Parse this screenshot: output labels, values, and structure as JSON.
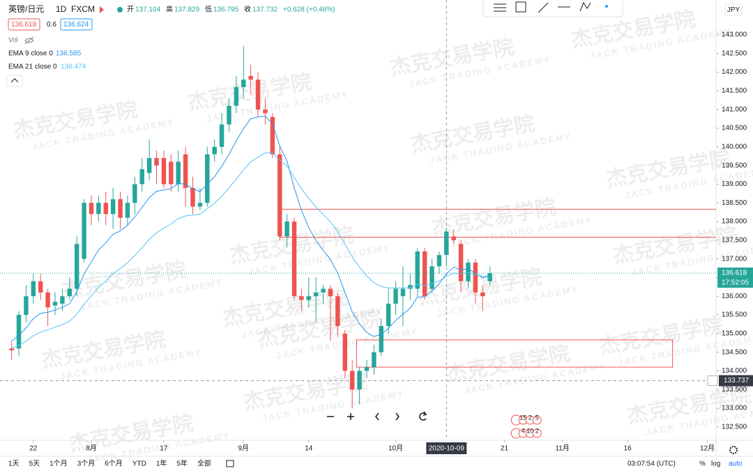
{
  "header": {
    "symbol": "英镑/日元",
    "interval": "1D",
    "source": "FXCM",
    "ohlc_labels": [
      "开",
      "高",
      "低",
      "收"
    ],
    "change": "+0.628 (+0.46%)",
    "spread": "0.6",
    "ask": 136.624
  },
  "indicators": {
    "vol": "Vol"
  },
  "watermark": {
    "cn": "杰克交易学院",
    "en": "JACK TRADING ACADEMY"
  },
  "chart_data": {
    "type": "candlestick",
    "currency": "JPY",
    "up_color": "#26a69a",
    "down_color": "#ef5350",
    "open": [
      134.6,
      134.6,
      135.5,
      136.0,
      136.4,
      136.1,
      135.75,
      135.8,
      136.0,
      136.2,
      137.0,
      138.5,
      138.2,
      138.5,
      138.2,
      138.6,
      138.1,
      138.5,
      139.0,
      139.3,
      139.7,
      139.7,
      139.6,
      139.0,
      139.8,
      138.9,
      138.4,
      138.5,
      139.8,
      140.0,
      140.6,
      141.1,
      141.6,
      141.9,
      141.8,
      141.0,
      140.8,
      139.8,
      137.6,
      138.0,
      136.0,
      135.9,
      136.0,
      136.1,
      136.2,
      136.0,
      135.0,
      134.0,
      133.5,
      134.0,
      134.1,
      134.5,
      135.2,
      135.8,
      136.0,
      136.2,
      136.2,
      137.2,
      136.2,
      136.8,
      137.104,
      137.6,
      137.4,
      136.4,
      136.9,
      136.1,
      136.4
    ],
    "high": [
      134.8,
      135.6,
      136.3,
      136.6,
      136.6,
      136.2,
      136.1,
      136.2,
      136.5,
      137.6,
      138.6,
      138.7,
      138.7,
      138.8,
      138.9,
      138.8,
      138.7,
      139.2,
      139.7,
      140.2,
      139.9,
      139.9,
      139.8,
      139.9,
      140.0,
      139.2,
      138.9,
      140.0,
      140.2,
      140.9,
      141.3,
      141.9,
      142.7,
      142.2,
      142.0,
      141.3,
      140.9,
      140.0,
      138.2,
      138.1,
      136.2,
      136.5,
      136.5,
      136.3,
      136.3,
      136.1,
      135.1,
      134.3,
      134.1,
      134.3,
      134.7,
      135.4,
      136.2,
      136.4,
      136.8,
      136.6,
      137.3,
      137.3,
      137.0,
      137.2,
      137.829,
      137.8,
      137.5,
      137.0,
      137.0,
      136.3,
      136.8
    ],
    "low": [
      134.3,
      134.4,
      135.3,
      135.8,
      135.9,
      135.2,
      135.5,
      135.6,
      135.9,
      136.0,
      136.9,
      137.9,
      138.0,
      137.9,
      137.8,
      137.8,
      137.9,
      138.2,
      138.8,
      139.1,
      139.0,
      138.9,
      138.8,
      138.8,
      138.4,
      138.2,
      138.3,
      138.4,
      139.6,
      139.8,
      140.4,
      140.9,
      141.3,
      141.4,
      140.8,
      140.6,
      139.7,
      137.5,
      137.3,
      135.9,
      135.6,
      135.7,
      135.3,
      135.8,
      134.8,
      134.9,
      133.8,
      133.0,
      133.1,
      133.8,
      133.9,
      134.4,
      135.0,
      135.5,
      135.2,
      135.9,
      136.0,
      135.9,
      136.1,
      136.6,
      136.795,
      137.4,
      136.1,
      136.2,
      135.8,
      135.6,
      136.3
    ],
    "close": [
      134.55,
      135.5,
      136.0,
      136.4,
      136.1,
      135.7,
      135.85,
      136.0,
      136.2,
      137.4,
      138.5,
      138.2,
      138.5,
      138.2,
      138.6,
      138.1,
      138.5,
      139.0,
      139.4,
      139.7,
      139.5,
      139.0,
      139.0,
      139.6,
      138.9,
      138.4,
      138.5,
      139.8,
      140.0,
      140.6,
      141.1,
      141.6,
      141.8,
      141.8,
      141.0,
      140.9,
      139.8,
      137.6,
      138.0,
      136.0,
      135.9,
      136.0,
      136.1,
      136.2,
      136.0,
      135.2,
      134.0,
      133.5,
      134.0,
      134.1,
      134.5,
      135.2,
      135.8,
      136.2,
      136.2,
      136.3,
      137.2,
      136.0,
      136.8,
      137.1,
      137.732,
      137.5,
      136.4,
      136.9,
      136.1,
      136.0,
      136.618
    ],
    "series": [
      {
        "name": "EMA 9 close 0",
        "color": "#2196f3",
        "values": [
          134.8,
          134.94,
          135.15,
          135.4,
          135.54,
          135.57,
          135.63,
          135.7,
          135.8,
          136.12,
          136.6,
          136.92,
          137.24,
          137.43,
          137.66,
          137.75,
          137.9,
          138.12,
          138.38,
          138.64,
          138.81,
          138.85,
          138.88,
          139.02,
          139.0,
          138.88,
          138.8,
          139.0,
          139.2,
          139.48,
          139.8,
          140.16,
          140.49,
          140.75,
          140.8,
          140.82,
          140.62,
          140.02,
          139.62,
          138.9,
          138.3,
          137.84,
          137.49,
          137.23,
          136.98,
          136.62,
          136.1,
          135.58,
          135.26,
          135.03,
          134.92,
          134.98,
          135.14,
          135.35,
          135.52,
          135.68,
          135.98,
          135.98,
          136.14,
          136.33,
          136.6,
          136.78,
          136.7,
          136.74,
          136.61,
          136.49,
          136.585
        ]
      },
      {
        "name": "EMA 21 close 0",
        "color": "#4fc3f7",
        "values": [
          134.6,
          134.68,
          134.8,
          134.94,
          135.04,
          135.1,
          135.17,
          135.24,
          135.33,
          135.52,
          135.79,
          136.01,
          136.23,
          136.41,
          136.61,
          136.74,
          136.9,
          137.09,
          137.3,
          137.52,
          137.7,
          137.82,
          137.93,
          138.08,
          138.15,
          138.17,
          138.2,
          138.34,
          138.49,
          138.68,
          138.9,
          139.14,
          139.38,
          139.6,
          139.73,
          139.84,
          139.84,
          139.64,
          139.49,
          139.18,
          138.88,
          138.62,
          138.39,
          138.19,
          137.99,
          137.74,
          137.4,
          137.05,
          136.78,
          136.54,
          136.36,
          136.26,
          136.22,
          136.22,
          136.22,
          136.23,
          136.32,
          136.29,
          136.34,
          136.41,
          136.53,
          136.62,
          136.6,
          136.63,
          136.58,
          136.53,
          136.474
        ]
      }
    ],
    "xlim": [
      -1.6,
      97.2
    ],
    "xticks": [
      {
        "value": 3,
        "label": "22"
      },
      {
        "value": 11,
        "label": "8月"
      },
      {
        "value": 21,
        "label": "17"
      },
      {
        "value": 32,
        "label": "9月"
      },
      {
        "value": 41,
        "label": "14"
      },
      {
        "value": 53,
        "label": "10月"
      },
      {
        "value": 68,
        "label": "21"
      },
      {
        "value": 76,
        "label": "11月"
      },
      {
        "value": 85,
        "label": "16"
      },
      {
        "value": 96,
        "label": "12月"
      }
    ],
    "ylim": [
      132.142,
      143.933
    ],
    "yticks": [
      {
        "value": 132.5,
        "label": "132.500"
      },
      {
        "value": 133,
        "label": "133.000"
      },
      {
        "value": 133.5,
        "label": "133.500"
      },
      {
        "value": 134,
        "label": "134.000"
      },
      {
        "value": 134.5,
        "label": "134.500"
      },
      {
        "value": 135,
        "label": "135.000"
      },
      {
        "value": 135.5,
        "label": "135.500"
      },
      {
        "value": 136,
        "label": "136.000"
      },
      {
        "value": 136.5,
        "label": "136.500"
      },
      {
        "value": 137,
        "label": "137.000"
      },
      {
        "value": 137.5,
        "label": "137.500"
      },
      {
        "value": 138,
        "label": "138.000"
      },
      {
        "value": 138.5,
        "label": "138.500"
      },
      {
        "value": 139,
        "label": "139.000"
      },
      {
        "value": 139.5,
        "label": "139.500"
      },
      {
        "value": 140,
        "label": "140.000"
      },
      {
        "value": 140.5,
        "label": "140.500"
      },
      {
        "value": 141,
        "label": "141.000"
      },
      {
        "value": 141.5,
        "label": "141.500"
      },
      {
        "value": 142,
        "label": "142.000"
      },
      {
        "value": 142.5,
        "label": "142.500"
      },
      {
        "value": 143,
        "label": "143.000"
      }
    ],
    "levels": [
      {
        "value": 138.33,
        "from": 37
      },
      {
        "value": 137.58,
        "from": 37
      }
    ],
    "zone": {
      "x": [
        47.6,
        91.2
      ],
      "y": [
        134.1,
        134.83
      ]
    },
    "crosshair": {
      "x": {
        "value": 60,
        "label": "2020-10-09"
      },
      "y": 133.737
    },
    "countdown": "17:52:05",
    "events": [
      {
        "x": 70,
        "labels": [
          "15",
          "2",
          "5"
        ]
      },
      {
        "x": 70,
        "labels": [
          "4",
          "10",
          "2"
        ]
      }
    ]
  },
  "toolbar": {
    "ranges": [
      "1天",
      "5天",
      "1个月",
      "3个月",
      "6个月",
      "YTD",
      "1年",
      "5年",
      "全部"
    ],
    "time": "03:07:54 (UTC)",
    "percent": "%",
    "log": "log",
    "auto": "auto"
  }
}
